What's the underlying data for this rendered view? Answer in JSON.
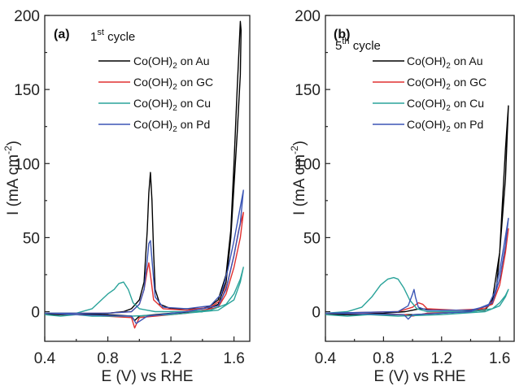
{
  "chart_data": [
    {
      "type": "line",
      "panel": "(a)",
      "cycle_label": {
        "main": "1",
        "sup": "st",
        "rest": " cycle"
      },
      "xlabel": "E (V) vs RHE",
      "ylabel": {
        "pre": "I (mA cm",
        "sup": "-2",
        "post": ")"
      },
      "xlim": [
        0.4,
        1.7
      ],
      "ylim": [
        -20,
        200
      ],
      "xticks": [
        "0.4",
        "0.8",
        "1.2",
        "1.6"
      ],
      "xtick_values": [
        0.4,
        0.8,
        1.2,
        1.6
      ],
      "yticks": [
        "0",
        "50",
        "100",
        "150",
        "200"
      ],
      "ytick_values": [
        0,
        50,
        100,
        150,
        200
      ],
      "legend_position": "top-right",
      "series": [
        {
          "name": "Co(OH)2 on Au",
          "legend": {
            "pre": "Co(OH)",
            "sub": "2",
            "post": " on Au"
          },
          "color": "#000000",
          "points": [
            [
              0.4,
              -2
            ],
            [
              0.6,
              -2
            ],
            [
              0.8,
              -1
            ],
            [
              0.9,
              0
            ],
            [
              0.95,
              2
            ],
            [
              1.0,
              8
            ],
            [
              1.03,
              20
            ],
            [
              1.05,
              55
            ],
            [
              1.06,
              80
            ],
            [
              1.07,
              94
            ],
            [
              1.08,
              75
            ],
            [
              1.09,
              40
            ],
            [
              1.1,
              15
            ],
            [
              1.13,
              5
            ],
            [
              1.2,
              2
            ],
            [
              1.3,
              2
            ],
            [
              1.4,
              2
            ],
            [
              1.45,
              4
            ],
            [
              1.5,
              8
            ],
            [
              1.55,
              25
            ],
            [
              1.58,
              55
            ],
            [
              1.6,
              100
            ],
            [
              1.62,
              150
            ],
            [
              1.64,
              196
            ],
            [
              1.645,
              190
            ],
            [
              1.64,
              160
            ],
            [
              1.62,
              120
            ],
            [
              1.6,
              85
            ],
            [
              1.58,
              50
            ],
            [
              1.55,
              20
            ],
            [
              1.5,
              5
            ],
            [
              1.4,
              0
            ],
            [
              1.2,
              -1
            ],
            [
              1.0,
              -3
            ],
            [
              0.97,
              -6
            ],
            [
              0.95,
              -3
            ],
            [
              0.8,
              -2
            ],
            [
              0.6,
              -2
            ],
            [
              0.4,
              -2
            ]
          ]
        },
        {
          "name": "Co(OH)2 on GC",
          "legend": {
            "pre": "Co(OH)",
            "sub": "2",
            "post": " on GC"
          },
          "color": "#e03030",
          "points": [
            [
              0.4,
              -1
            ],
            [
              0.8,
              -1
            ],
            [
              0.95,
              0
            ],
            [
              1.0,
              5
            ],
            [
              1.03,
              15
            ],
            [
              1.05,
              28
            ],
            [
              1.06,
              33
            ],
            [
              1.07,
              25
            ],
            [
              1.09,
              8
            ],
            [
              1.15,
              2
            ],
            [
              1.3,
              1
            ],
            [
              1.45,
              3
            ],
            [
              1.52,
              8
            ],
            [
              1.56,
              20
            ],
            [
              1.6,
              38
            ],
            [
              1.63,
              55
            ],
            [
              1.66,
              67
            ],
            [
              1.64,
              50
            ],
            [
              1.6,
              30
            ],
            [
              1.55,
              12
            ],
            [
              1.5,
              3
            ],
            [
              1.3,
              -1
            ],
            [
              1.0,
              -4
            ],
            [
              0.97,
              -11
            ],
            [
              0.95,
              -4
            ],
            [
              0.6,
              -2
            ],
            [
              0.4,
              -1
            ]
          ]
        },
        {
          "name": "Co(OH)2 on Cu",
          "legend": {
            "pre": "Co(OH)",
            "sub": "2",
            "post": " on Cu"
          },
          "color": "#2aa39a",
          "points": [
            [
              0.4,
              -1
            ],
            [
              0.6,
              -1
            ],
            [
              0.7,
              2
            ],
            [
              0.76,
              8
            ],
            [
              0.8,
              12
            ],
            [
              0.84,
              15
            ],
            [
              0.87,
              19
            ],
            [
              0.9,
              20
            ],
            [
              0.93,
              15
            ],
            [
              0.96,
              6
            ],
            [
              1.0,
              2
            ],
            [
              1.1,
              0
            ],
            [
              1.3,
              0
            ],
            [
              1.45,
              1
            ],
            [
              1.55,
              5
            ],
            [
              1.6,
              12
            ],
            [
              1.64,
              22
            ],
            [
              1.66,
              30
            ],
            [
              1.64,
              20
            ],
            [
              1.6,
              8
            ],
            [
              1.5,
              1
            ],
            [
              1.2,
              -2
            ],
            [
              0.95,
              -3
            ],
            [
              0.85,
              -3
            ],
            [
              0.7,
              -3
            ],
            [
              0.6,
              -2
            ],
            [
              0.5,
              -3
            ],
            [
              0.4,
              -2
            ]
          ]
        },
        {
          "name": "Co(OH)2 on Pd",
          "legend": {
            "pre": "Co(OH)",
            "sub": "2",
            "post": " on Pd"
          },
          "color": "#3b55b5",
          "points": [
            [
              0.4,
              -1
            ],
            [
              0.8,
              -1
            ],
            [
              0.95,
              0
            ],
            [
              1.0,
              5
            ],
            [
              1.03,
              15
            ],
            [
              1.05,
              35
            ],
            [
              1.06,
              46
            ],
            [
              1.07,
              48
            ],
            [
              1.08,
              35
            ],
            [
              1.1,
              10
            ],
            [
              1.15,
              3
            ],
            [
              1.3,
              2
            ],
            [
              1.45,
              4
            ],
            [
              1.52,
              12
            ],
            [
              1.56,
              28
            ],
            [
              1.6,
              48
            ],
            [
              1.63,
              65
            ],
            [
              1.66,
              82
            ],
            [
              1.64,
              60
            ],
            [
              1.6,
              38
            ],
            [
              1.55,
              15
            ],
            [
              1.5,
              4
            ],
            [
              1.3,
              0
            ],
            [
              1.05,
              -3
            ],
            [
              0.98,
              -8
            ],
            [
              0.95,
              -3
            ],
            [
              0.6,
              -2
            ],
            [
              0.4,
              -1
            ]
          ]
        }
      ]
    },
    {
      "type": "line",
      "panel": "(b)",
      "cycle_label": {
        "main": "5",
        "sup": "th",
        "rest": " cycle"
      },
      "xlabel": "E (V) vs RHE",
      "ylabel": {
        "pre": "I (mA cm",
        "sup": "-2",
        "post": ")"
      },
      "xlim": [
        0.4,
        1.7
      ],
      "ylim": [
        -20,
        200
      ],
      "xticks": [
        "0.4",
        "0.8",
        "1.2",
        "1.6"
      ],
      "xtick_values": [
        0.4,
        0.8,
        1.2,
        1.6
      ],
      "yticks": [
        "0",
        "50",
        "100",
        "150",
        "200"
      ],
      "ytick_values": [
        0,
        50,
        100,
        150,
        200
      ],
      "legend_position": "top-right",
      "series": [
        {
          "name": "Co(OH)2 on Au",
          "legend": {
            "pre": "Co(OH)",
            "sub": "2",
            "post": " on Au"
          },
          "color": "#000000",
          "points": [
            [
              0.4,
              -2
            ],
            [
              0.8,
              -1
            ],
            [
              0.95,
              0
            ],
            [
              1.0,
              1
            ],
            [
              1.05,
              2
            ],
            [
              1.2,
              1
            ],
            [
              1.4,
              1
            ],
            [
              1.5,
              2
            ],
            [
              1.55,
              6
            ],
            [
              1.58,
              18
            ],
            [
              1.6,
              40
            ],
            [
              1.62,
              75
            ],
            [
              1.64,
              110
            ],
            [
              1.66,
              139
            ],
            [
              1.64,
              90
            ],
            [
              1.6,
              40
            ],
            [
              1.55,
              8
            ],
            [
              1.5,
              1
            ],
            [
              1.2,
              -1
            ],
            [
              1.0,
              -2
            ],
            [
              0.8,
              -2
            ],
            [
              0.4,
              -2
            ]
          ]
        },
        {
          "name": "Co(OH)2 on GC",
          "legend": {
            "pre": "Co(OH)",
            "sub": "2",
            "post": " on GC"
          },
          "color": "#e03030",
          "points": [
            [
              0.4,
              -1
            ],
            [
              0.9,
              0
            ],
            [
              1.0,
              3
            ],
            [
              1.04,
              6
            ],
            [
              1.07,
              5
            ],
            [
              1.1,
              2
            ],
            [
              1.3,
              1
            ],
            [
              1.5,
              2
            ],
            [
              1.56,
              8
            ],
            [
              1.6,
              18
            ],
            [
              1.63,
              35
            ],
            [
              1.66,
              56
            ],
            [
              1.64,
              40
            ],
            [
              1.6,
              18
            ],
            [
              1.55,
              5
            ],
            [
              1.4,
              0
            ],
            [
              1.1,
              -1
            ],
            [
              1.0,
              -3
            ],
            [
              0.95,
              -2
            ],
            [
              0.4,
              -1
            ]
          ]
        },
        {
          "name": "Co(OH)2 on Cu",
          "legend": {
            "pre": "Co(OH)",
            "sub": "2",
            "post": " on Cu"
          },
          "color": "#2aa39a",
          "points": [
            [
              0.4,
              -1
            ],
            [
              0.55,
              0
            ],
            [
              0.65,
              3
            ],
            [
              0.72,
              10
            ],
            [
              0.78,
              18
            ],
            [
              0.83,
              22
            ],
            [
              0.87,
              23
            ],
            [
              0.9,
              22
            ],
            [
              0.94,
              16
            ],
            [
              0.98,
              8
            ],
            [
              1.03,
              2
            ],
            [
              1.1,
              0
            ],
            [
              1.4,
              0
            ],
            [
              1.55,
              2
            ],
            [
              1.6,
              6
            ],
            [
              1.64,
              11
            ],
            [
              1.66,
              15
            ],
            [
              1.64,
              10
            ],
            [
              1.6,
              4
            ],
            [
              1.5,
              0
            ],
            [
              1.2,
              -2
            ],
            [
              0.9,
              -3
            ],
            [
              0.7,
              -2
            ],
            [
              0.55,
              -3
            ],
            [
              0.4,
              -2
            ]
          ]
        },
        {
          "name": "Co(OH)2 on Pd",
          "legend": {
            "pre": "Co(OH)",
            "sub": "2",
            "post": " on Pd"
          },
          "color": "#3b55b5",
          "points": [
            [
              0.4,
              -1
            ],
            [
              0.9,
              0
            ],
            [
              0.97,
              4
            ],
            [
              1.0,
              12
            ],
            [
              1.01,
              15
            ],
            [
              1.02,
              10
            ],
            [
              1.04,
              3
            ],
            [
              1.1,
              1
            ],
            [
              1.4,
              1
            ],
            [
              1.52,
              4
            ],
            [
              1.57,
              14
            ],
            [
              1.6,
              28
            ],
            [
              1.63,
              45
            ],
            [
              1.66,
              63
            ],
            [
              1.64,
              45
            ],
            [
              1.6,
              22
            ],
            [
              1.55,
              6
            ],
            [
              1.4,
              0
            ],
            [
              1.0,
              -2
            ],
            [
              0.97,
              -5
            ],
            [
              0.94,
              -2
            ],
            [
              0.4,
              -1
            ]
          ]
        }
      ]
    }
  ]
}
